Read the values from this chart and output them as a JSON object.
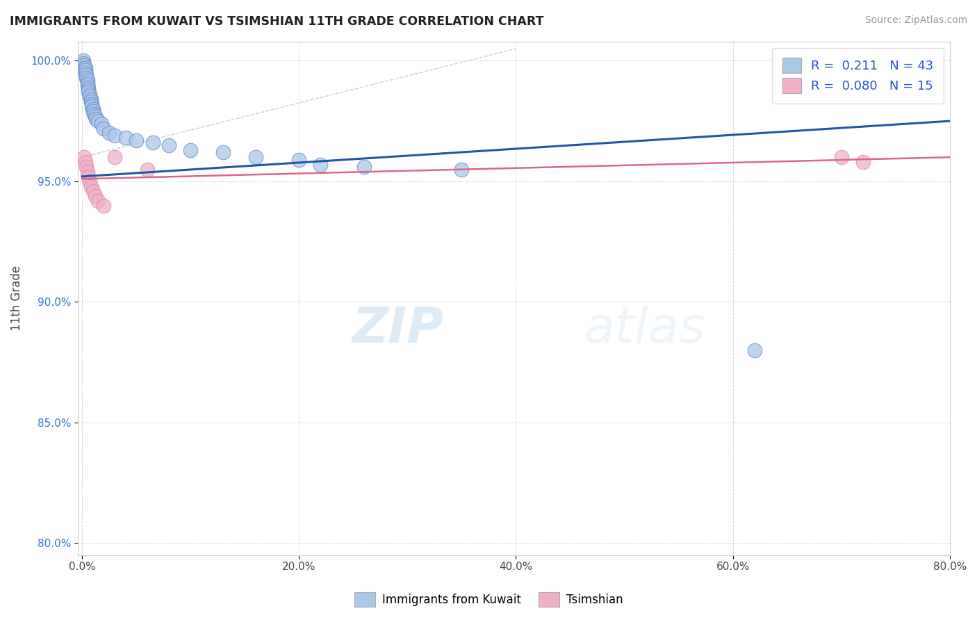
{
  "title": "IMMIGRANTS FROM KUWAIT VS TSIMSHIAN 11TH GRADE CORRELATION CHART",
  "source_text": "Source: ZipAtlas.com",
  "ylabel": "11th Grade",
  "xlim": [
    -0.004,
    0.8
  ],
  "ylim": [
    0.795,
    1.008
  ],
  "xtick_labels": [
    "0.0%",
    "20.0%",
    "40.0%",
    "60.0%",
    "80.0%"
  ],
  "xtick_values": [
    0.0,
    0.2,
    0.4,
    0.6,
    0.8
  ],
  "ytick_labels": [
    "80.0%",
    "85.0%",
    "90.0%",
    "95.0%",
    "100.0%"
  ],
  "ytick_values": [
    0.8,
    0.85,
    0.9,
    0.95,
    1.0
  ],
  "blue_R": 0.211,
  "blue_N": 43,
  "pink_R": 0.08,
  "pink_N": 15,
  "blue_color": "#a8c8e8",
  "pink_color": "#f0b0c8",
  "blue_line_color": "#2255aa",
  "pink_line_color": "#dd6688",
  "blue_dot_edge": "#6688cc",
  "pink_dot_edge": "#dd88aa",
  "legend_label_blue": "Immigrants from Kuwait",
  "legend_label_pink": "Tsimshian",
  "watermark_zip": "ZIP",
  "watermark_atlas": "atlas",
  "blue_x": [
    0.001,
    0.001,
    0.002,
    0.002,
    0.003,
    0.003,
    0.003,
    0.004,
    0.004,
    0.005,
    0.005,
    0.005,
    0.006,
    0.006,
    0.006,
    0.007,
    0.007,
    0.008,
    0.008,
    0.009,
    0.009,
    0.01,
    0.01,
    0.011,
    0.012,
    0.013,
    0.015,
    0.018,
    0.02,
    0.025,
    0.03,
    0.04,
    0.05,
    0.065,
    0.08,
    0.1,
    0.13,
    0.16,
    0.2,
    0.22,
    0.26,
    0.35,
    0.62
  ],
  "blue_y": [
    1.0,
    0.999,
    0.998,
    0.997,
    0.997,
    0.996,
    0.995,
    0.994,
    0.993,
    0.992,
    0.991,
    0.99,
    0.989,
    0.988,
    0.987,
    0.986,
    0.985,
    0.984,
    0.983,
    0.982,
    0.981,
    0.98,
    0.979,
    0.978,
    0.977,
    0.976,
    0.975,
    0.974,
    0.972,
    0.97,
    0.969,
    0.968,
    0.967,
    0.966,
    0.965,
    0.963,
    0.962,
    0.96,
    0.959,
    0.957,
    0.956,
    0.955,
    0.88
  ],
  "pink_x": [
    0.002,
    0.003,
    0.004,
    0.005,
    0.006,
    0.007,
    0.008,
    0.01,
    0.012,
    0.015,
    0.02,
    0.03,
    0.06,
    0.7,
    0.72
  ],
  "pink_y": [
    0.96,
    0.958,
    0.956,
    0.954,
    0.952,
    0.95,
    0.948,
    0.946,
    0.944,
    0.942,
    0.94,
    0.96,
    0.955,
    0.96,
    0.958
  ],
  "blue_trendline_x": [
    0.0,
    0.8
  ],
  "blue_trendline_y": [
    0.952,
    0.975
  ],
  "pink_trendline_x": [
    0.0,
    0.8
  ],
  "pink_trendline_y": [
    0.951,
    0.96
  ],
  "ref_line_x": [
    0.0,
    0.4
  ],
  "ref_line_y": [
    0.96,
    1.005
  ]
}
